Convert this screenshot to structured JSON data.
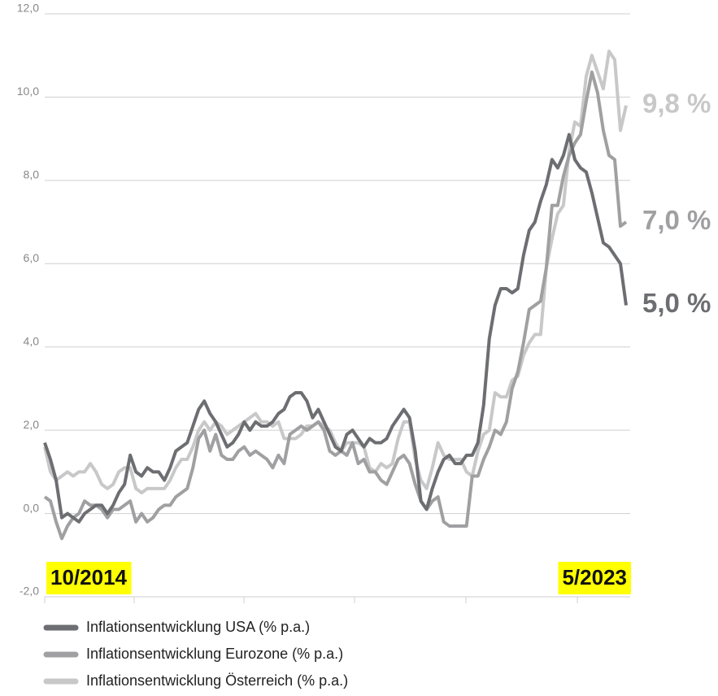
{
  "chart_data": {
    "type": "line",
    "categories": [
      "10/2014",
      null,
      null,
      null,
      null,
      null,
      null,
      null,
      null,
      null,
      null,
      null,
      null,
      null,
      null,
      null,
      null,
      null,
      null,
      null,
      null,
      null,
      null,
      null,
      null,
      null,
      null,
      null,
      null,
      null,
      null,
      null,
      null,
      null,
      null,
      null,
      null,
      null,
      null,
      null,
      null,
      null,
      null,
      null,
      null,
      null,
      null,
      null,
      null,
      null,
      null,
      null,
      null,
      null,
      null,
      null,
      null,
      null,
      null,
      null,
      null,
      null,
      null,
      null,
      null,
      null,
      null,
      null,
      null,
      null,
      null,
      null,
      null,
      null,
      null,
      null,
      null,
      null,
      null,
      null,
      null,
      null,
      null,
      null,
      null,
      null,
      null,
      null,
      null,
      null,
      null,
      null,
      null,
      null,
      null,
      null,
      null,
      null,
      null,
      null,
      null,
      null,
      "5/2023"
    ],
    "ylim": [
      -2,
      12
    ],
    "yticks": [
      {
        "value": -2,
        "label": "-2,0"
      },
      {
        "value": 0,
        "label": "0,0"
      },
      {
        "value": 2,
        "label": "2,0"
      },
      {
        "value": 4,
        "label": "4,0"
      },
      {
        "value": 6,
        "label": "6,0"
      },
      {
        "value": 8,
        "label": "8,0"
      },
      {
        "value": 10,
        "label": "10,0"
      },
      {
        "value": 12,
        "label": "12,0"
      }
    ],
    "grid": true,
    "series": [
      {
        "name": "Inflationsentwicklung USA (% p.a.)",
        "color": "#6d6e71",
        "end_label": "5,0 %",
        "values": [
          1.7,
          1.3,
          0.8,
          -0.1,
          0.0,
          -0.1,
          -0.2,
          0.0,
          0.1,
          0.2,
          0.2,
          0.0,
          0.2,
          0.5,
          0.7,
          1.4,
          1.0,
          0.9,
          1.1,
          1.0,
          1.0,
          0.8,
          1.1,
          1.5,
          1.6,
          1.7,
          2.1,
          2.5,
          2.7,
          2.4,
          2.2,
          1.9,
          1.6,
          1.7,
          1.9,
          2.2,
          2.0,
          2.2,
          2.1,
          2.1,
          2.2,
          2.4,
          2.5,
          2.8,
          2.9,
          2.9,
          2.7,
          2.3,
          2.5,
          2.2,
          1.9,
          1.6,
          1.5,
          1.9,
          2.0,
          1.8,
          1.6,
          1.8,
          1.7,
          1.7,
          1.8,
          2.1,
          2.3,
          2.5,
          2.3,
          1.5,
          0.3,
          0.1,
          0.6,
          1.0,
          1.3,
          1.4,
          1.2,
          1.2,
          1.4,
          1.4,
          1.7,
          2.6,
          4.2,
          5.0,
          5.4,
          5.4,
          5.3,
          5.4,
          6.2,
          6.8,
          7.0,
          7.5,
          7.9,
          8.5,
          8.3,
          8.6,
          9.1,
          8.5,
          8.3,
          8.2,
          7.7,
          7.1,
          6.5,
          6.4,
          6.2,
          6.0,
          5.0
        ]
      },
      {
        "name": "Inflationsentwicklung Eurozone (% p.a.)",
        "color": "#a0a0a2",
        "end_label": "7,0 %",
        "values": [
          0.4,
          0.3,
          -0.2,
          -0.6,
          -0.3,
          -0.1,
          0.0,
          0.3,
          0.2,
          0.2,
          0.1,
          -0.1,
          0.1,
          0.1,
          0.2,
          0.3,
          -0.2,
          0.0,
          -0.2,
          -0.1,
          0.1,
          0.2,
          0.2,
          0.4,
          0.5,
          0.6,
          1.1,
          1.8,
          2.0,
          1.5,
          1.9,
          1.4,
          1.3,
          1.3,
          1.5,
          1.6,
          1.4,
          1.5,
          1.4,
          1.3,
          1.1,
          1.4,
          1.2,
          1.9,
          2.0,
          2.1,
          2.0,
          2.1,
          2.2,
          2.0,
          1.5,
          1.4,
          1.5,
          1.4,
          1.7,
          1.2,
          1.3,
          1.0,
          1.0,
          0.8,
          0.7,
          1.0,
          1.3,
          1.4,
          1.2,
          0.7,
          0.3,
          0.1,
          0.3,
          0.4,
          -0.2,
          -0.3,
          -0.3,
          -0.3,
          -0.3,
          0.9,
          0.9,
          1.3,
          1.6,
          2.0,
          1.9,
          2.2,
          3.0,
          3.4,
          4.1,
          4.9,
          5.0,
          5.1,
          5.9,
          7.4,
          7.4,
          8.1,
          8.6,
          8.9,
          9.1,
          9.9,
          10.6,
          10.1,
          9.2,
          8.6,
          8.5,
          6.9,
          7.0
        ]
      },
      {
        "name": "Inflationsentwicklung Österreich (% p.a.)",
        "color": "#c8c8c8",
        "end_label": "9,8 %",
        "values": [
          1.6,
          1.0,
          0.8,
          0.9,
          1.0,
          0.9,
          1.0,
          1.0,
          1.2,
          1.0,
          0.7,
          0.6,
          0.7,
          1.0,
          1.1,
          1.1,
          0.6,
          0.5,
          0.6,
          0.6,
          0.6,
          0.6,
          0.8,
          1.1,
          1.3,
          1.3,
          1.6,
          2.0,
          2.2,
          2.0,
          2.2,
          2.1,
          1.9,
          2.0,
          2.1,
          2.2,
          2.3,
          2.4,
          2.2,
          2.2,
          2.1,
          2.2,
          1.8,
          1.8,
          1.8,
          1.9,
          2.1,
          2.1,
          2.2,
          2.1,
          2.0,
          1.7,
          1.5,
          1.7,
          1.7,
          1.7,
          1.6,
          1.1,
          1.0,
          1.2,
          1.1,
          1.2,
          1.8,
          2.2,
          2.2,
          1.3,
          0.8,
          0.6,
          1.1,
          1.7,
          1.4,
          1.3,
          1.3,
          1.3,
          1.0,
          0.9,
          1.5,
          1.9,
          2.0,
          2.9,
          2.8,
          2.8,
          3.2,
          3.3,
          3.8,
          4.1,
          4.3,
          4.3,
          5.9,
          6.6,
          7.2,
          7.4,
          8.7,
          9.4,
          9.3,
          10.5,
          11.0,
          10.6,
          10.2,
          11.1,
          10.9,
          9.2,
          9.8
        ]
      }
    ]
  }
}
